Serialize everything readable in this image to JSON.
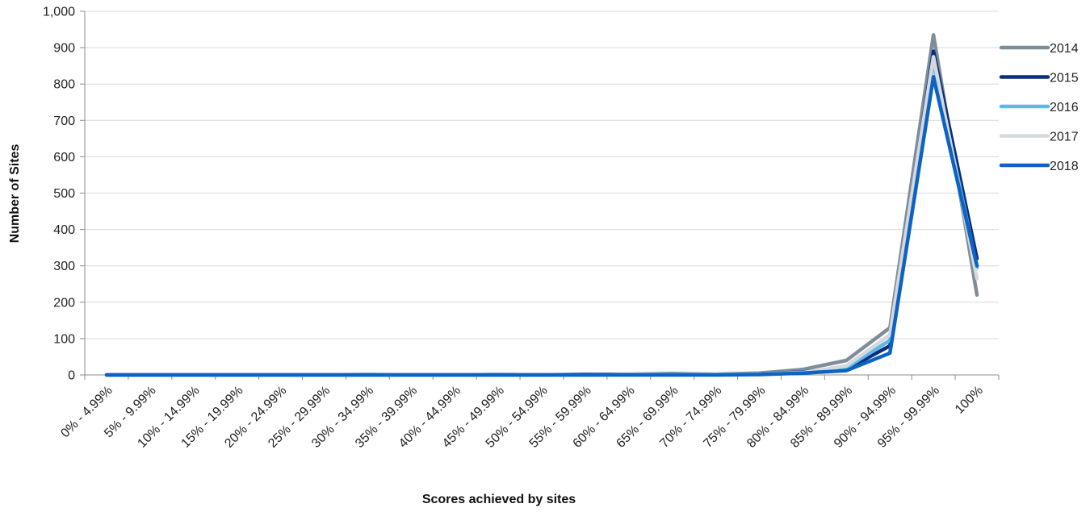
{
  "chart_data": {
    "type": "line",
    "title": "",
    "xlabel": "Scores achieved by sites",
    "ylabel": "Number of Sites",
    "ylim": [
      0,
      1000
    ],
    "yticks": [
      "0",
      "100",
      "200",
      "300",
      "400",
      "500",
      "600",
      "700",
      "800",
      "900",
      "1,000"
    ],
    "grid": "horizontal",
    "legend_position": "right",
    "categories": [
      "0% - 4.99%",
      "5% - 9.99%",
      "10% - 14.99%",
      "15% - 19.99%",
      "20% - 24.99%",
      "25% - 29.99%",
      "30% - 34.99%",
      "35% - 39.99%",
      "40% - 44.99%",
      "45% - 49.99%",
      "50% - 54.99%",
      "55% - 59.99%",
      "60% - 64.99%",
      "65% - 69.99%",
      "70% - 74.99%",
      "75% - 79.99%",
      "80% - 84.99%",
      "85% - 89.99%",
      "90% - 94.99%",
      "95% - 99.99%",
      "100%"
    ],
    "series": [
      {
        "name": "2014",
        "color": "#7f8c99",
        "values": [
          0,
          0,
          0,
          0,
          0,
          0,
          1,
          0,
          0,
          1,
          0,
          2,
          2,
          4,
          2,
          5,
          15,
          40,
          130,
          935,
          220
        ]
      },
      {
        "name": "2015",
        "color": "#0a2f7c",
        "values": [
          0,
          0,
          0,
          0,
          0,
          0,
          0,
          0,
          0,
          0,
          0,
          1,
          1,
          2,
          1,
          2,
          8,
          15,
          80,
          890,
          320
        ]
      },
      {
        "name": "2016",
        "color": "#5bb8ea",
        "values": [
          0,
          0,
          0,
          0,
          0,
          0,
          0,
          0,
          0,
          0,
          0,
          0,
          1,
          1,
          1,
          2,
          7,
          20,
          95,
          860,
          295
        ]
      },
      {
        "name": "2017",
        "color": "#d6d9db",
        "values": [
          0,
          0,
          0,
          0,
          0,
          0,
          0,
          0,
          0,
          0,
          0,
          0,
          1,
          1,
          1,
          1,
          6,
          25,
          110,
          875,
          265
        ]
      },
      {
        "name": "2018",
        "color": "#0c63c4",
        "values": [
          0,
          0,
          0,
          0,
          0,
          0,
          0,
          0,
          0,
          0,
          0,
          0,
          0,
          0,
          0,
          1,
          5,
          12,
          60,
          820,
          300
        ]
      }
    ]
  }
}
